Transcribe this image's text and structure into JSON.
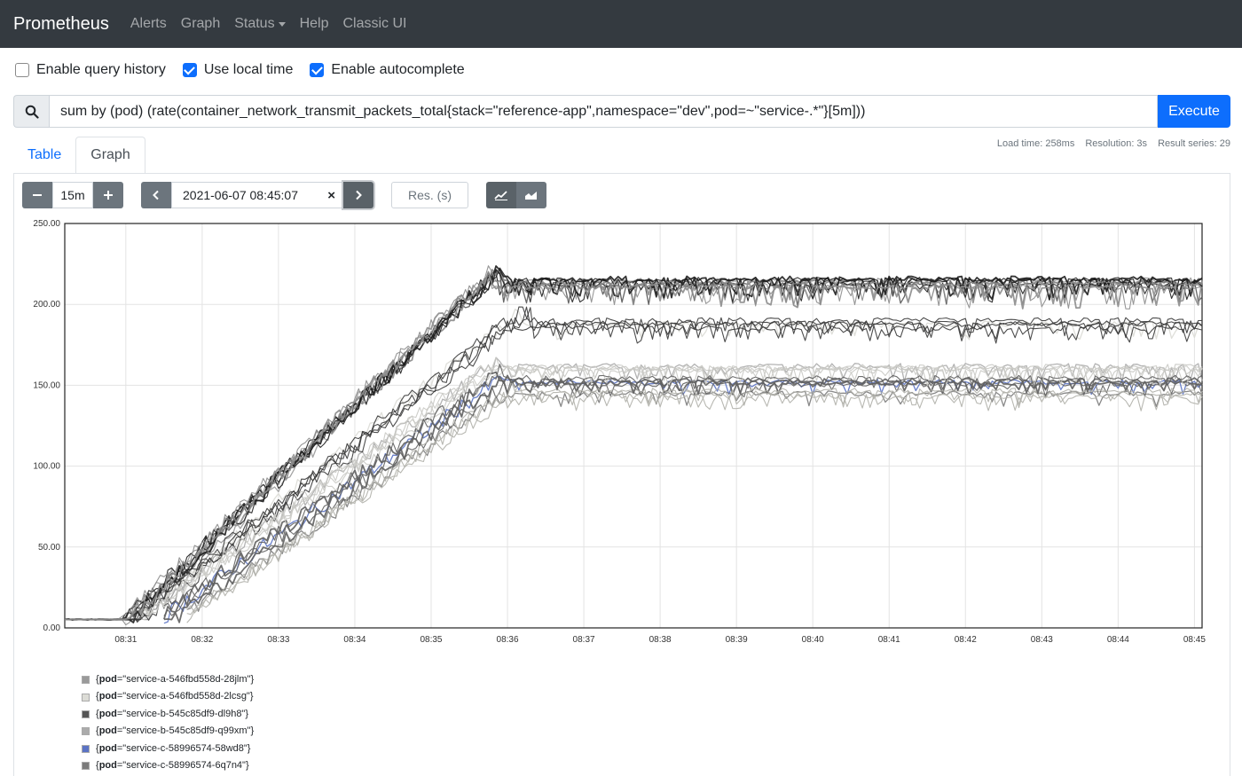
{
  "navbar": {
    "brand": "Prometheus",
    "items": [
      "Alerts",
      "Graph",
      "Status",
      "Help",
      "Classic UI"
    ]
  },
  "options": {
    "query_history": {
      "label": "Enable query history",
      "checked": false
    },
    "local_time": {
      "label": "Use local time",
      "checked": true
    },
    "autocomplete": {
      "label": "Enable autocomplete",
      "checked": true
    }
  },
  "query": {
    "value": "sum by (pod) (rate(container_network_transmit_packets_total{stack=\"reference-app\",namespace=\"dev\",pod=~\"service-.*\"}[5m]))",
    "execute_label": "Execute",
    "search_icon": "search-icon"
  },
  "tabs": {
    "table": "Table",
    "graph": "Graph"
  },
  "stats": {
    "load_time": "Load time: 258ms",
    "resolution": "Resolution: 3s",
    "result_series": "Result series: 29"
  },
  "controls": {
    "range": "15m",
    "end_time": "2021-06-07 08:45:07",
    "res_placeholder": "Res. (s)"
  },
  "chart_data": {
    "type": "line",
    "x_ticks": [
      "08:31",
      "08:32",
      "08:33",
      "08:34",
      "08:35",
      "08:36",
      "08:37",
      "08:38",
      "08:39",
      "08:40",
      "08:41",
      "08:42",
      "08:43",
      "08:44",
      "08:45"
    ],
    "y_ticks": [
      "0.00",
      "50.00",
      "100.00",
      "150.00",
      "200.00",
      "250.00"
    ],
    "ylim": [
      0,
      250
    ],
    "xlim_minutes": [
      30.2,
      45.1
    ],
    "grid": true,
    "series": [
      {
        "name": "{pod=\"service-a-546fbd558d-28jlm\"}",
        "color": "#9a9a9a",
        "start": 30.2,
        "ramp_start": 31.1,
        "ramp_end": 35.9,
        "plateau": 215,
        "peak": 222,
        "noise": 12
      },
      {
        "name": "{pod=\"service-a-546fbd558d-2lcsg\"}",
        "color": "#dcdcd6",
        "start": 31.0,
        "ramp_start": 31.1,
        "ramp_end": 36.2,
        "plateau": 188,
        "peak": 195,
        "noise": 10
      },
      {
        "name": "{pod=\"service-b-545c85df9-dl9h8\"}",
        "color": "#555555",
        "start": 30.2,
        "ramp_start": 31.0,
        "ramp_end": 35.8,
        "plateau": 213,
        "peak": 222,
        "noise": 14
      },
      {
        "name": "{pod=\"service-b-545c85df9-q99xm\"}",
        "color": "#ababab",
        "start": 31.2,
        "ramp_start": 31.2,
        "ramp_end": 35.9,
        "plateau": 162,
        "peak": 165,
        "noise": 10
      },
      {
        "name": "{pod=\"service-c-58996574-58wd8\"}",
        "color": "#5b73c4",
        "start": 31.5,
        "ramp_start": 31.5,
        "ramp_end": 36.0,
        "plateau": 152,
        "peak": 156,
        "noise": 8
      },
      {
        "name": "{pod=\"service-c-58996574-6q7n4\"}",
        "color": "#7b7b7b",
        "start": 31.8,
        "ramp_start": 31.8,
        "ramp_end": 36.1,
        "plateau": 145,
        "peak": 148,
        "noise": 9
      }
    ]
  }
}
